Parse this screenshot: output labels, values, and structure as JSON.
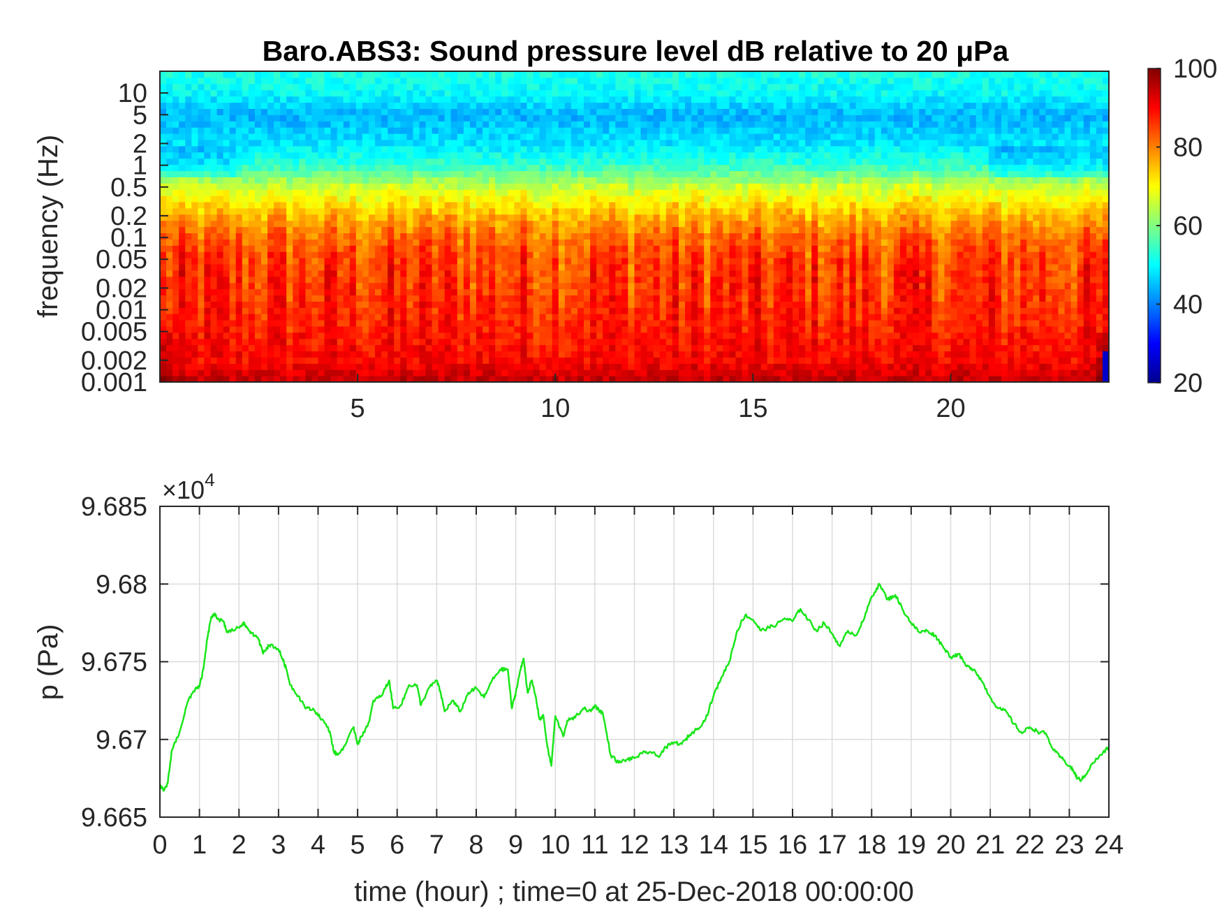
{
  "colors": {
    "trace": "#19e619",
    "axes": "#262626",
    "grid": "#dcdcdc",
    "colormap": [
      "#00008f",
      "#0000ff",
      "#0080ff",
      "#00ffff",
      "#80ff80",
      "#ffff00",
      "#ff8000",
      "#ff0000",
      "#800000"
    ]
  },
  "chart_data": [
    {
      "type": "heatmap",
      "title": "Baro.ABS3: Sound pressure level dB relative to 20 μPa",
      "ylabel": "frequency (Hz)",
      "y_scale": "log",
      "ylim": [
        0.001,
        20
      ],
      "xlim": [
        0,
        24
      ],
      "x_ticks": [
        5,
        10,
        15,
        20
      ],
      "x_tick_labels": [
        "5",
        "10",
        "15",
        "20"
      ],
      "y_ticks": [
        0.001,
        0.002,
        0.005,
        0.01,
        0.02,
        0.05,
        0.1,
        0.2,
        0.5,
        1,
        2,
        5,
        10
      ],
      "y_tick_labels": [
        "0.001",
        "0.002",
        "0.005",
        "0.01",
        "0.02",
        "0.05",
        "0.1",
        "0.2",
        "0.5",
        "1",
        "2",
        "5",
        "10"
      ],
      "colorbar": {
        "range": [
          20,
          100
        ],
        "ticks": [
          20,
          40,
          60,
          80,
          100
        ],
        "tick_labels": [
          "20",
          "40",
          "60",
          "80",
          "100"
        ],
        "colormap": "jet"
      },
      "level_profile": {
        "frequency_hz": [
          0.001,
          0.002,
          0.005,
          0.01,
          0.02,
          0.05,
          0.1,
          0.2,
          0.5,
          1,
          2,
          5,
          10,
          20
        ],
        "typical_db": [
          95,
          90,
          88,
          87,
          86,
          85,
          82,
          76,
          66,
          54,
          48,
          44,
          50,
          52
        ]
      }
    },
    {
      "type": "line",
      "xlabel": "time (hour) ; time=0 at 25-Dec-2018 00:00:00",
      "ylabel": "p (Pa)",
      "exponent_label": "×10",
      "exponent": "4",
      "xlim": [
        0,
        24
      ],
      "ylim": [
        96650,
        96850
      ],
      "grid": true,
      "x_ticks": [
        0,
        1,
        2,
        3,
        4,
        5,
        6,
        7,
        8,
        9,
        10,
        11,
        12,
        13,
        14,
        15,
        16,
        17,
        18,
        19,
        20,
        21,
        22,
        23,
        24
      ],
      "x_tick_labels": [
        "0",
        "1",
        "2",
        "3",
        "4",
        "5",
        "6",
        "7",
        "8",
        "9",
        "10",
        "11",
        "12",
        "13",
        "14",
        "15",
        "16",
        "17",
        "18",
        "19",
        "20",
        "21",
        "22",
        "23",
        "24"
      ],
      "y_ticks": [
        96650,
        96700,
        96750,
        96800,
        96850
      ],
      "y_tick_labels": [
        "9.665",
        "9.67",
        "9.675",
        "9.68",
        "9.685"
      ],
      "series": [
        {
          "x": [
            0,
            0.1,
            0.2,
            0.3,
            0.5,
            0.7,
            0.9,
            1.0,
            1.1,
            1.2,
            1.3,
            1.4,
            1.5,
            1.6,
            1.7,
            1.8,
            2.0,
            2.1,
            2.2,
            2.3,
            2.5,
            2.6,
            2.7,
            2.8,
            3.0,
            3.1,
            3.2,
            3.3,
            3.5,
            3.7,
            3.9,
            4.1,
            4.3,
            4.4,
            4.5,
            4.7,
            4.9,
            5.0,
            5.1,
            5.3,
            5.4,
            5.6,
            5.8,
            5.9,
            6.1,
            6.3,
            6.5,
            6.6,
            6.8,
            7.0,
            7.1,
            7.2,
            7.4,
            7.6,
            7.8,
            8.0,
            8.2,
            8.4,
            8.6,
            8.8,
            8.9,
            9.0,
            9.1,
            9.2,
            9.3,
            9.4,
            9.5,
            9.6,
            9.7,
            9.8,
            9.9,
            10.0,
            10.2,
            10.3,
            10.5,
            10.7,
            10.9,
            11.0,
            11.1,
            11.2,
            11.4,
            11.6,
            11.8,
            12.0,
            12.2,
            12.4,
            12.6,
            12.8,
            13.0,
            13.2,
            13.4,
            13.6,
            13.8,
            14.0,
            14.2,
            14.4,
            14.6,
            14.8,
            15.0,
            15.2,
            15.4,
            15.6,
            15.8,
            16.0,
            16.2,
            16.4,
            16.6,
            16.8,
            17.0,
            17.2,
            17.4,
            17.6,
            17.8,
            18.0,
            18.2,
            18.4,
            18.6,
            18.8,
            19.0,
            19.2,
            19.4,
            19.6,
            19.8,
            20.0,
            20.2,
            20.4,
            20.6,
            20.8,
            21.0,
            21.2,
            21.4,
            21.6,
            21.8,
            22.0,
            22.2,
            22.4,
            22.6,
            22.8,
            23.0,
            23.1,
            23.2,
            23.3,
            23.4,
            23.6,
            23.8,
            24.0
          ],
          "y": [
            96670,
            96667,
            96672,
            96693,
            96705,
            96724,
            96733,
            96734,
            96745,
            96765,
            96779,
            96780,
            96777,
            96776,
            96769,
            96770,
            96772,
            96775,
            96772,
            96769,
            96764,
            96756,
            96759,
            96761,
            96758,
            96752,
            96745,
            96735,
            96728,
            96720,
            96719,
            96713,
            96705,
            96692,
            96690,
            96697,
            96708,
            96697,
            96702,
            96712,
            96725,
            96728,
            96738,
            96720,
            96722,
            96735,
            96735,
            96722,
            96733,
            96738,
            96730,
            96718,
            96725,
            96718,
            96730,
            96733,
            96727,
            96738,
            96745,
            96745,
            96720,
            96730,
            96743,
            96752,
            96730,
            96738,
            96728,
            96713,
            96715,
            96695,
            96683,
            96715,
            96702,
            96712,
            96714,
            96720,
            96718,
            96722,
            96719,
            96717,
            96690,
            96685,
            96687,
            96688,
            96691,
            96692,
            96689,
            96695,
            96698,
            96697,
            96703,
            96707,
            96713,
            96728,
            96740,
            96750,
            96770,
            96780,
            96777,
            96770,
            96772,
            96774,
            96778,
            96776,
            96784,
            96777,
            96770,
            96775,
            96768,
            96760,
            96770,
            96767,
            96777,
            96792,
            96800,
            96790,
            96793,
            96783,
            96775,
            96769,
            96770,
            96767,
            96760,
            96753,
            96755,
            96747,
            96745,
            96737,
            96727,
            96720,
            96718,
            96710,
            96704,
            96708,
            96705,
            96704,
            96693,
            96688,
            96683,
            96680,
            96675,
            96674,
            96677,
            96685,
            96690,
            96695
          ]
        }
      ]
    }
  ]
}
